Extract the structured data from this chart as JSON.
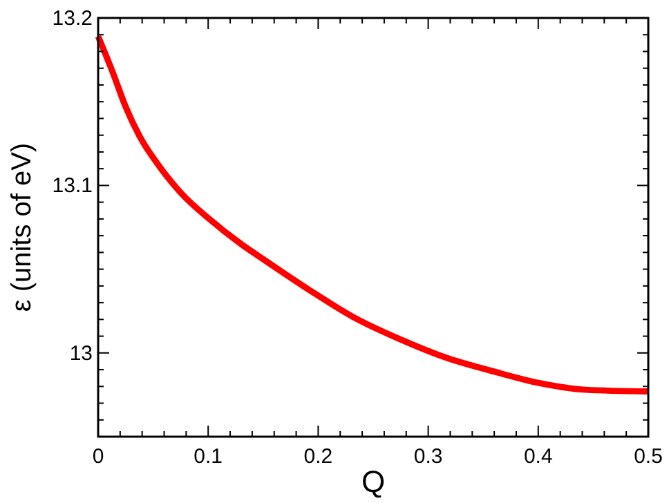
{
  "chart_data": {
    "type": "line",
    "xlabel": "Q",
    "ylabel": "ε (units of eV)",
    "xlim": [
      0,
      0.5
    ],
    "ylim": [
      12.95,
      13.2
    ],
    "xticks": [
      0,
      {
        "value": 0.02,
        "label": null
      },
      {
        "value": 0.04,
        "label": null
      },
      {
        "value": 0.06,
        "label": null
      },
      {
        "value": 0.08,
        "label": null
      },
      0.1,
      {
        "value": 0.12,
        "label": null
      },
      {
        "value": 0.14,
        "label": null
      },
      {
        "value": 0.16,
        "label": null
      },
      {
        "value": 0.18,
        "label": null
      },
      0.2,
      {
        "value": 0.22,
        "label": null
      },
      {
        "value": 0.24,
        "label": null
      },
      {
        "value": 0.26,
        "label": null
      },
      {
        "value": 0.28,
        "label": null
      },
      0.3,
      {
        "value": 0.32,
        "label": null
      },
      {
        "value": 0.34,
        "label": null
      },
      {
        "value": 0.36,
        "label": null
      },
      {
        "value": 0.38,
        "label": null
      },
      0.4,
      {
        "value": 0.42,
        "label": null
      },
      {
        "value": 0.44,
        "label": null
      },
      {
        "value": 0.46,
        "label": null
      },
      {
        "value": 0.48,
        "label": null
      },
      0.5
    ],
    "yticks": [
      {
        "value": 12.96,
        "label": null
      },
      {
        "value": 12.97,
        "label": null
      },
      {
        "value": 12.98,
        "label": null
      },
      {
        "value": 12.99,
        "label": null
      },
      13,
      {
        "value": 13.01,
        "label": null
      },
      {
        "value": 13.02,
        "label": null
      },
      {
        "value": 13.03,
        "label": null
      },
      {
        "value": 13.04,
        "label": null
      },
      {
        "value": 13.05,
        "label": null
      },
      {
        "value": 13.06,
        "label": null
      },
      {
        "value": 13.07,
        "label": null
      },
      {
        "value": 13.08,
        "label": null
      },
      {
        "value": 13.09,
        "label": null
      },
      13.1,
      {
        "value": 13.11,
        "label": null
      },
      {
        "value": 13.12,
        "label": null
      },
      {
        "value": 13.13,
        "label": null
      },
      {
        "value": 13.14,
        "label": null
      },
      {
        "value": 13.15,
        "label": null
      },
      {
        "value": 13.16,
        "label": null
      },
      {
        "value": 13.17,
        "label": null
      },
      {
        "value": 13.18,
        "label": null
      },
      {
        "value": 13.19,
        "label": null
      },
      13.2
    ],
    "grid": false,
    "marker": "none",
    "line_style": "solid",
    "series": [
      {
        "color": "#ff0000",
        "x": [
          0,
          0.013,
          0.025,
          0.038,
          0.055,
          0.076,
          0.101,
          0.13,
          0.15,
          0.191,
          0.233,
          0.275,
          0.317,
          0.359,
          0.401,
          0.443,
          0.5
        ],
        "values": [
          13.189,
          13.168,
          13.147,
          13.129,
          13.112,
          13.095,
          13.08,
          13.065,
          13.056,
          13.038,
          13.021,
          13.008,
          12.997,
          12.989,
          12.982,
          12.978,
          12.977
        ]
      }
    ]
  }
}
